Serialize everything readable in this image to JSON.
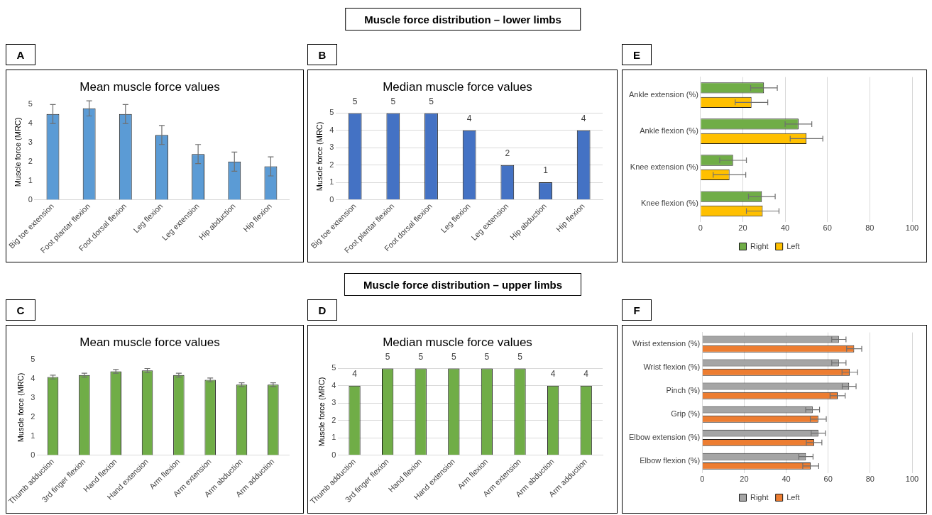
{
  "chart_data": [
    {
      "type": "bar",
      "title": "Mean muscle force values",
      "ylabel": "Muscle force (MRC)",
      "annotations": [
        "A",
        "Muscle force distribution – lower limbs"
      ],
      "categories": [
        "Big toe extension",
        "Foot plantar flexion",
        "Foot dorsal flexion",
        "Leg flexion",
        "Leg extension",
        "Hip abduction",
        "Hip flexion"
      ],
      "values": [
        4.5,
        4.8,
        4.5,
        3.4,
        2.4,
        2.0,
        1.75
      ],
      "errors": [
        0.5,
        0.4,
        0.5,
        0.5,
        0.5,
        0.5,
        0.5
      ],
      "color": "#5b9bd5",
      "ylim": [
        0,
        5
      ],
      "yticks": [
        0,
        1,
        2,
        3,
        4,
        5
      ],
      "grid": false,
      "legend": false
    },
    {
      "type": "bar",
      "title": "Median muscle force values",
      "ylabel": "Muscle force (MRC)",
      "annotations": [
        "B"
      ],
      "categories": [
        "Big toe extension",
        "Foot plantar flexion",
        "Foot dorsal flexion",
        "Leg flexion",
        "Leg extension",
        "Hip abduction",
        "Hip flexion"
      ],
      "values": [
        5,
        5,
        5,
        4,
        2,
        1,
        4
      ],
      "color": "#4472c4",
      "data_labels": true,
      "ylim": [
        0,
        5
      ],
      "yticks": [
        0,
        1,
        2,
        3,
        4,
        5
      ],
      "grid": "y",
      "legend": false
    },
    {
      "type": "bar",
      "orientation": "horizontal",
      "annotations": [
        "E"
      ],
      "categories": [
        "Ankle extension (%)",
        "Ankle flexion (%)",
        "Knee extension (%)",
        "Knee flexion (%)"
      ],
      "series": [
        {
          "name": "Right",
          "color": "#70ad47",
          "values": [
            30,
            46.3,
            15.4,
            29
          ],
          "errors": [
            6.3,
            6.3,
            6.3,
            6.3
          ]
        },
        {
          "name": "Left",
          "color": "#ffc000",
          "values": [
            24.1,
            50.1,
            13.7,
            29.4
          ],
          "errors": [
            7.7,
            7.7,
            7.7,
            7.7
          ]
        }
      ],
      "xlim": [
        0,
        100
      ],
      "xticks": [
        0,
        20,
        40,
        60,
        80,
        100
      ],
      "grid": "x",
      "legend": "bottom"
    },
    {
      "type": "bar",
      "title": "Mean muscle force values",
      "ylabel": "Muscle force (MRC)",
      "annotations": [
        "C",
        "Muscle force distribution – upper limbs"
      ],
      "categories": [
        "Thumb adduction",
        "3rd finger flexion",
        "Hand flexion",
        "Hand extension",
        "Arm flexion",
        "Arm extension",
        "Arm abduction",
        "Arm adduction"
      ],
      "values": [
        4.1,
        4.2,
        4.4,
        4.45,
        4.2,
        3.95,
        3.7,
        3.7
      ],
      "errors": [
        0.1,
        0.1,
        0.1,
        0.1,
        0.1,
        0.1,
        0.1,
        0.1
      ],
      "color": "#70ad47",
      "ylim": [
        0,
        5
      ],
      "yticks": [
        0,
        1,
        2,
        3,
        4,
        5
      ],
      "grid": false,
      "legend": false
    },
    {
      "type": "bar",
      "title": "Median muscle force values",
      "ylabel": "Muscle force (MRC)",
      "annotations": [
        "D"
      ],
      "categories": [
        "Thumb adduction",
        "3rd finger flexion",
        "Hand flexion",
        "Hand extension",
        "Arm flexion",
        "Arm extension",
        "Arm abduction",
        "Arm adduction"
      ],
      "values": [
        4,
        5,
        5,
        5,
        5,
        5,
        4,
        4
      ],
      "color": "#70ad47",
      "data_labels": true,
      "ylim": [
        0,
        5
      ],
      "yticks": [
        0,
        1,
        2,
        3,
        4,
        5
      ],
      "grid": "y",
      "legend": false
    },
    {
      "type": "bar",
      "orientation": "horizontal",
      "annotations": [
        "F"
      ],
      "categories": [
        "Wrist extension (%)",
        "Wrist flexion (%)",
        "Pinch (%)",
        "Grip (%)",
        "Elbow extension (%)",
        "Elbow flexion (%)"
      ],
      "series": [
        {
          "name": "Right",
          "color": "#a5a5a5",
          "values": [
            65.1,
            65.1,
            70,
            52.6,
            55.3,
            49.4
          ],
          "errors": [
            3.4,
            3.4,
            3.3,
            3.3,
            3.4,
            3.4
          ]
        },
        {
          "name": "Left",
          "color": "#ed7d31",
          "values": [
            72.4,
            70.3,
            64.5,
            55.3,
            53.3,
            51.7
          ],
          "errors": [
            3.6,
            3.7,
            3.6,
            3.8,
            3.7,
            3.8
          ]
        }
      ],
      "xlim": [
        0,
        100
      ],
      "xticks": [
        0,
        20,
        40,
        60,
        80,
        100
      ],
      "grid": "x",
      "legend": "bottom"
    }
  ]
}
